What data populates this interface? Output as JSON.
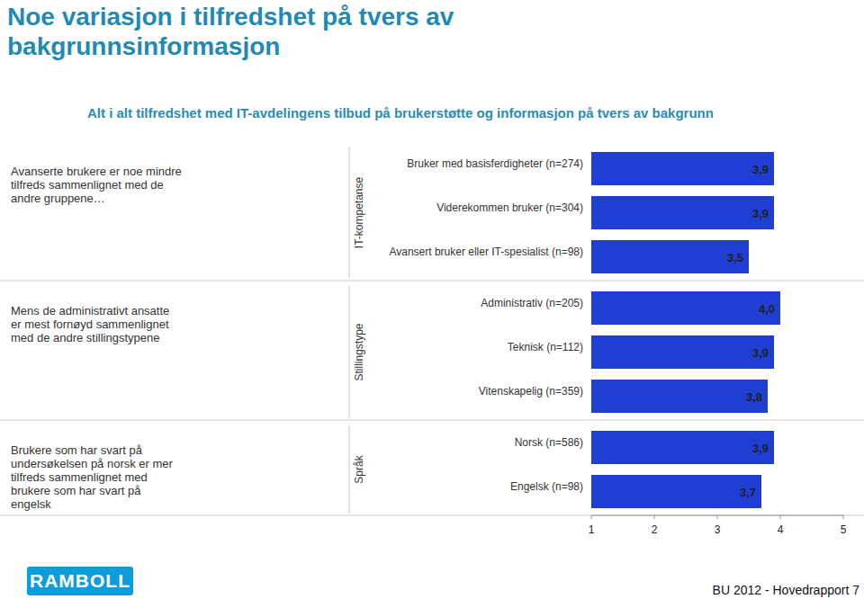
{
  "chart_data": {
    "type": "bar",
    "orientation": "horizontal",
    "title": "Noe variasjon i tilfredshet på tvers av bakgrunnsinformasjon",
    "subtitle": "Alt i alt tilfredshet med IT-avdelingens tilbud på brukerstøtte og informasjon på tvers av bakgrunn",
    "color": "#1f3fd4",
    "data_labels": true,
    "grid": false,
    "xlim": [
      1,
      5
    ],
    "xticks": [
      1,
      2,
      3,
      4,
      5
    ],
    "groups": [
      {
        "label": "IT-kompetanse",
        "annotation": "Avanserte brukere er noe mindre tilfreds sammenlignet med de andre gruppene…",
        "categories": [
          "Bruker med basisferdigheter (n=274)",
          "Viderekommen bruker (n=304)",
          "Avansert bruker eller IT-spesialist (n=98)"
        ],
        "values": [
          3.9,
          3.9,
          3.5
        ],
        "value_labels": [
          "3,9",
          "3,9",
          "3,5"
        ]
      },
      {
        "label": "Stillingstype",
        "annotation": "Mens de administrativt ansatte er mest fornøyd sammenlignet med de andre stillingstypene",
        "categories": [
          "Administrativ (n=205)",
          "Teknisk (n=112)",
          "Vitenskapelig (n=359)"
        ],
        "values": [
          4.0,
          3.9,
          3.8
        ],
        "value_labels": [
          "4,0",
          "3,9",
          "3,8"
        ]
      },
      {
        "label": "Språk",
        "annotation": "Brukere som har svart på undersøkelsen på norsk er mer tilfreds sammenlignet med brukere som har svart på engelsk",
        "categories": [
          "Norsk (n=586)",
          "Engelsk (n=98)"
        ],
        "values": [
          3.9,
          3.7
        ],
        "value_labels": [
          "3,9",
          "3,7"
        ]
      }
    ],
    "logo": "RAMBOLL",
    "source": "BU 2012 - Hovedrapport 7"
  }
}
